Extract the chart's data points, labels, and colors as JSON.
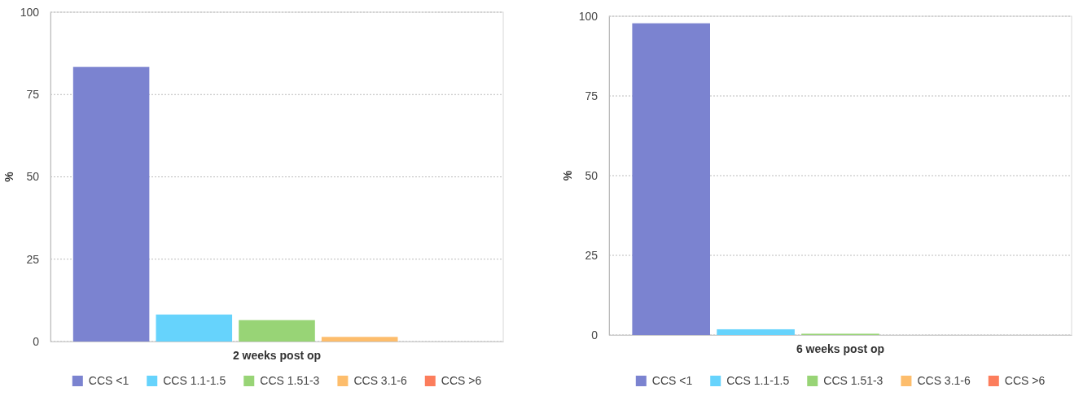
{
  "chart_data": [
    {
      "type": "bar",
      "xlabel": "2 weeks post op",
      "ylabel": "%",
      "categories": [
        null
      ],
      "ylim": [
        0,
        100
      ],
      "yticks": [
        0,
        25,
        50,
        75,
        100
      ],
      "grid": "y",
      "legend": "bottom",
      "series": [
        {
          "name": "CCS <1",
          "color": "#7b83d0",
          "values": [
            83.4
          ]
        },
        {
          "name": "CCS 1.1-1.5",
          "color": "#66d3fc",
          "values": [
            8.2
          ]
        },
        {
          "name": "CCS 1.51-3",
          "color": "#98d476",
          "values": [
            6.5
          ]
        },
        {
          "name": "CCS 3.1-6",
          "color": "#fdbd6c",
          "values": [
            1.4
          ]
        },
        {
          "name": "CCS >6",
          "color": "#fc7d5c",
          "values": [
            0
          ]
        }
      ]
    },
    {
      "type": "bar",
      "xlabel": "6 weeks post op",
      "ylabel": "%",
      "categories": [
        null
      ],
      "ylim": [
        0,
        100
      ],
      "yticks": [
        0,
        25,
        50,
        75,
        100
      ],
      "grid": "y",
      "legend": "bottom",
      "series": [
        {
          "name": "CCS <1",
          "color": "#7b83d0",
          "values": [
            97.8
          ]
        },
        {
          "name": "CCS 1.1-1.5",
          "color": "#66d3fc",
          "values": [
            1.8
          ]
        },
        {
          "name": "CCS 1.51-3",
          "color": "#98d476",
          "values": [
            0.4
          ]
        },
        {
          "name": "CCS 3.1-6",
          "color": "#fdbd6c",
          "values": [
            0
          ]
        },
        {
          "name": "CCS >6",
          "color": "#fc7d5c",
          "values": [
            0
          ]
        }
      ]
    }
  ]
}
